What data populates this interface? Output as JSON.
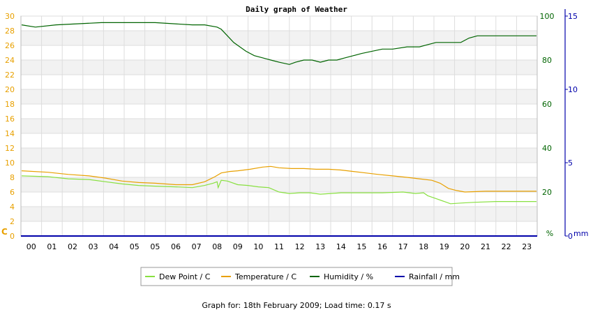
{
  "chart_data": {
    "type": "line",
    "title": "Daily graph of Weather",
    "x_ticks": [
      "00",
      "01",
      "02",
      "03",
      "04",
      "05",
      "05",
      "06",
      "07",
      "08",
      "09",
      "10",
      "11",
      "12",
      "13",
      "14",
      "15",
      "16",
      "17",
      "18",
      "19",
      "20",
      "21",
      "22",
      "23"
    ],
    "y_left": {
      "label": "C",
      "range": [
        0,
        30
      ],
      "ticks": [
        0,
        2,
        4,
        6,
        8,
        10,
        12,
        14,
        16,
        18,
        20,
        22,
        24,
        26,
        28,
        30
      ],
      "color": "#e8a000"
    },
    "y_humidity": {
      "label": "%",
      "range": [
        0,
        100
      ],
      "ticks": [
        0,
        20,
        40,
        60,
        80,
        100
      ],
      "color": "#006400"
    },
    "y_rain": {
      "label": "mm",
      "range": [
        0,
        15
      ],
      "ticks": [
        0,
        5,
        10,
        15
      ],
      "color": "#0000aa"
    },
    "grid": true,
    "series": [
      {
        "name": "Dew Point / C",
        "color": "#88e040",
        "axis": "left",
        "x": [
          0,
          0.8,
          1.8,
          2.8,
          3.6,
          4.4,
          5.2,
          6.0,
          7.0,
          7.8,
          8.4,
          8.8,
          9.0,
          9.05,
          9.2,
          9.5,
          10.0,
          10.5,
          11.0,
          11.5,
          12.0,
          12.5,
          13.0,
          13.5,
          14.0,
          14.5,
          15.0,
          16.0,
          17.0,
          18.0,
          18.6,
          19.0,
          19.2,
          19.6,
          20.0,
          20.3,
          20.8,
          21.5,
          22.5,
          23.3
        ],
        "y": [
          8.2,
          8.1,
          7.8,
          7.7,
          7.4,
          7.1,
          6.9,
          6.8,
          6.7,
          6.6,
          6.9,
          7.2,
          7.4,
          6.6,
          7.6,
          7.5,
          7.0,
          6.9,
          6.7,
          6.6,
          6.0,
          5.8,
          5.9,
          5.9,
          5.7,
          5.8,
          5.9,
          5.9,
          5.9,
          6.0,
          5.8,
          5.9,
          5.5,
          5.1,
          4.7,
          4.4,
          4.5,
          4.6,
          4.7,
          4.7
        ]
      },
      {
        "name": "Temperature / C",
        "color": "#e8a000",
        "axis": "left",
        "x": [
          0,
          0.8,
          1.8,
          2.8,
          3.6,
          4.4,
          5.2,
          6.0,
          7.0,
          7.8,
          8.4,
          8.9,
          9.2,
          9.6,
          10.0,
          10.6,
          11.2,
          11.6,
          12.0,
          12.6,
          13.2,
          13.8,
          14.4,
          15.0,
          15.6,
          16.2,
          16.8,
          17.5,
          18.2,
          18.8,
          19.4,
          19.8,
          20.2,
          20.6,
          21.0,
          22.0,
          23.3
        ],
        "y": [
          8.9,
          8.7,
          8.4,
          8.2,
          7.9,
          7.5,
          7.3,
          7.2,
          7.0,
          7.0,
          7.4,
          8.1,
          8.6,
          8.8,
          8.9,
          9.1,
          9.4,
          9.5,
          9.3,
          9.2,
          9.2,
          9.1,
          9.1,
          9.0,
          8.8,
          8.6,
          8.4,
          8.2,
          8.0,
          7.8,
          7.6,
          7.2,
          6.5,
          6.2,
          6.0,
          6.1,
          6.1
        ]
      },
      {
        "name": "Humidity / %",
        "color": "#006400",
        "axis": "humidity",
        "x": [
          0,
          0.2,
          1.2,
          3.4,
          6.0,
          7.8,
          8.4,
          9.0,
          9.2,
          9.5,
          9.8,
          10.1,
          10.4,
          10.8,
          11.2,
          11.6,
          12.0,
          12.5,
          12.8,
          13.2,
          13.6,
          14.0,
          14.4,
          14.8,
          15.2,
          15.6,
          16.0,
          16.5,
          17.0,
          17.5,
          18.2,
          18.8,
          19.2,
          19.6,
          20.0,
          20.4,
          20.8,
          21.2,
          21.6,
          22.5,
          23.3
        ],
        "y": [
          96,
          95,
          96,
          97,
          97,
          96,
          96,
          95,
          94,
          91,
          88,
          86,
          84,
          82,
          81,
          80,
          79,
          78,
          79,
          80,
          80,
          79,
          80,
          80,
          81,
          82,
          83,
          84,
          85,
          85,
          86,
          86,
          87,
          88,
          88,
          88,
          88,
          90,
          91,
          91,
          91
        ]
      },
      {
        "name": "Rainfall / mm",
        "color": "#0000aa",
        "axis": "rain",
        "x": [
          0,
          23.3
        ],
        "y": [
          0,
          0
        ]
      }
    ],
    "legend_position": "bottom"
  },
  "footer": {
    "text": "Graph for: 18th February 2009; Load time: 0.17 s"
  }
}
